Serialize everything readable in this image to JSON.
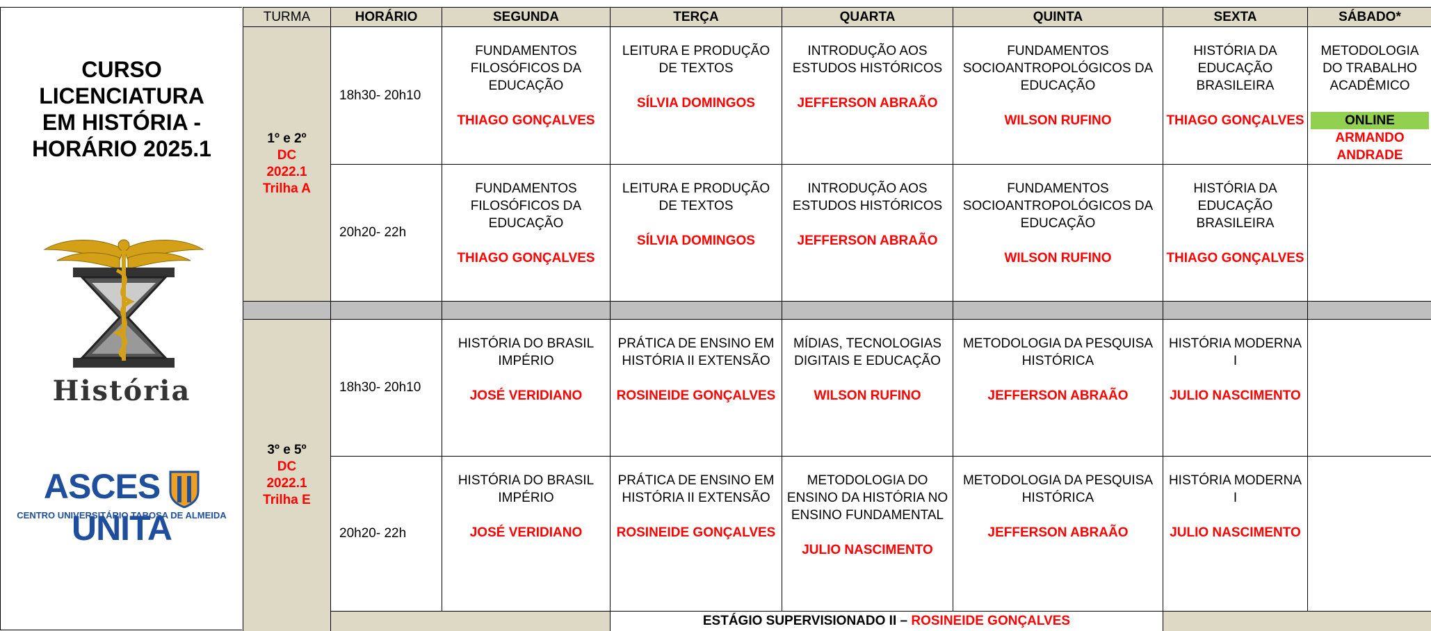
{
  "title": [
    "CURSO",
    "LICENCIATURA",
    "EM HISTÓRIA -",
    "HORÁRIO 2025.1"
  ],
  "logo_text": "História",
  "institution": {
    "name_left": "ASCES",
    "name_right": "UNITA",
    "subtitle": "CENTRO UNIVERSITÁRIO TABOSA DE ALMEIDA"
  },
  "table": {
    "headers": [
      "TURMA",
      "HORÁRIO",
      "SEGUNDA",
      "TERÇA",
      "QUARTA",
      "QUINTA",
      "SEXTA",
      "SÁBADO*"
    ],
    "groups": [
      {
        "turma": [
          "1º e 2º",
          "DC",
          "2022.1",
          "Trilha A"
        ],
        "rows": [
          {
            "time": "18h30- 20h10",
            "cells": [
              {
                "subject": "FUNDAMENTOS FILOSÓFICOS DA EDUCAÇÃO",
                "teacher": "THIAGO GONÇALVES"
              },
              {
                "subject": "LEITURA E PRODUÇÃO DE TEXTOS",
                "teacher": "SÍLVIA DOMINGOS"
              },
              {
                "subject": "INTRODUÇÃO AOS ESTUDOS HISTÓRICOS",
                "teacher": "JEFFERSON ABRAÃO"
              },
              {
                "subject": "FUNDAMENTOS SOCIOANTROPOLÓGICOS DA EDUCAÇÃO",
                "teacher": "WILSON RUFINO"
              },
              {
                "subject": "HISTÓRIA DA EDUCAÇÃO BRASILEIRA",
                "teacher": "THIAGO GONÇALVES"
              },
              {
                "subject": "METODOLOGIA DO TRABALHO ACADÊMICO",
                "badge": "ONLINE",
                "teacher": "ARMANDO ANDRADE"
              }
            ]
          },
          {
            "time": "20h20- 22h",
            "cells": [
              {
                "subject": "FUNDAMENTOS FILOSÓFICOS DA EDUCAÇÃO",
                "teacher": "THIAGO GONÇALVES"
              },
              {
                "subject": "LEITURA E PRODUÇÃO DE TEXTOS",
                "teacher": "SÍLVIA DOMINGOS"
              },
              {
                "subject": "INTRODUÇÃO AOS ESTUDOS HISTÓRICOS",
                "teacher": "JEFFERSON ABRAÃO"
              },
              {
                "subject": "FUNDAMENTOS SOCIOANTROPOLÓGICOS DA EDUCAÇÃO",
                "teacher": "WILSON RUFINO"
              },
              {
                "subject": "HISTÓRIA DA EDUCAÇÃO BRASILEIRA",
                "teacher": "THIAGO GONÇALVES"
              },
              null
            ]
          }
        ]
      },
      {
        "turma": [
          "3º e 5º",
          "DC",
          "2022.1",
          "Trilha E"
        ],
        "rows": [
          {
            "time": "18h30- 20h10",
            "cells": [
              {
                "subject": "HISTÓRIA DO BRASIL IMPÉRIO",
                "teacher": "JOSÉ VERIDIANO"
              },
              {
                "subject": "PRÁTICA DE ENSINO EM HISTÓRIA II EXTENSÃO",
                "teacher": "ROSINEIDE GONÇALVES"
              },
              {
                "subject": "MÍDIAS, TECNOLOGIAS DIGITAIS E EDUCAÇÃO",
                "teacher": "WILSON RUFINO"
              },
              {
                "subject": "METODOLOGIA DA PESQUISA HISTÓRICA",
                "teacher": "JEFFERSON ABRAÃO"
              },
              {
                "subject": "HISTÓRIA MODERNA I",
                "teacher": "JULIO NASCIMENTO"
              },
              null
            ]
          },
          {
            "time": "20h20- 22h",
            "cells": [
              {
                "subject": "HISTÓRIA DO BRASIL IMPÉRIO",
                "teacher": "JOSÉ VERIDIANO"
              },
              {
                "subject": "PRÁTICA DE ENSINO EM HISTÓRIA II EXTENSÃO",
                "teacher": "ROSINEIDE GONÇALVES"
              },
              {
                "subject": "METODOLOGIA DO ENSINO DA HISTÓRIA NO ENSINO FUNDAMENTAL",
                "teacher": "JULIO NASCIMENTO"
              },
              {
                "subject": "METODOLOGIA DA PESQUISA HISTÓRICA",
                "teacher": "JEFFERSON ABRAÃO"
              },
              {
                "subject": "HISTÓRIA MODERNA I",
                "teacher": "JULIO NASCIMENTO"
              },
              null
            ]
          }
        ]
      }
    ],
    "footer": {
      "label": "ESTÁGIO SUPERVISIONADO II – ",
      "teacher": "ROSINEIDE GONÇALVES"
    }
  }
}
